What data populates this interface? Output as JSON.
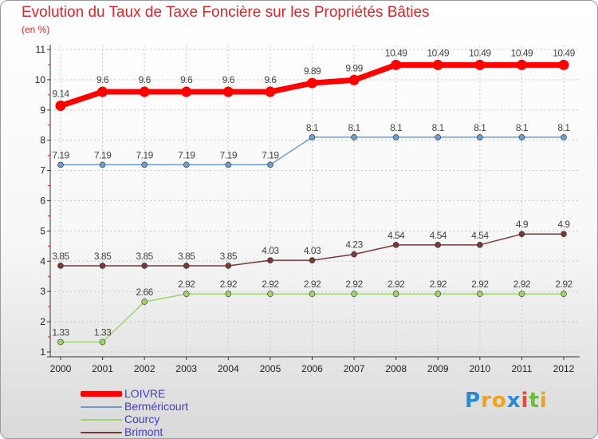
{
  "title": "Evolution du Taux de Taxe Foncière sur les Propriétés Bâties",
  "subtitle": "(en %)",
  "logo_letters": [
    "P",
    "r",
    "o",
    "x",
    "i",
    "t",
    "i"
  ],
  "logo_colors": [
    "#2a8ad4",
    "#f0a21a",
    "#f0a21a",
    "#2a8ad4",
    "#e64b3c",
    "#6cbd3c",
    "#f0a21a"
  ],
  "chart_data": {
    "type": "line",
    "title": "Evolution du Taux de Taxe Foncière sur les Propriétés Bâties",
    "ylabel": "(en %)",
    "xlabel": "",
    "x": [
      "2000",
      "2001",
      "2002",
      "2003",
      "2004",
      "2005",
      "2006",
      "2007",
      "2008",
      "2009",
      "2010",
      "2011",
      "2012"
    ],
    "ylim": [
      1,
      11
    ],
    "yticks": [
      "1",
      "2",
      "3",
      "4",
      "5",
      "6",
      "7",
      "8",
      "9",
      "10",
      "11"
    ],
    "legend_position": "bottom-left",
    "series": [
      {
        "name": "LOIVRE",
        "color": "#ff0000",
        "values": [
          9.14,
          9.6,
          9.6,
          9.6,
          9.6,
          9.6,
          9.89,
          9.99,
          10.49,
          10.49,
          10.49,
          10.49,
          10.49
        ],
        "labels": [
          "9.14",
          "9.6",
          "9.6",
          "9.6",
          "9.6",
          "9.6",
          "9.89",
          "9.99",
          "10.49",
          "10.49",
          "10.49",
          "10.49",
          "10.49"
        ]
      },
      {
        "name": "Berméricourt",
        "color": "#6b9ed0",
        "values": [
          7.19,
          7.19,
          7.19,
          7.19,
          7.19,
          7.19,
          8.1,
          8.1,
          8.1,
          8.1,
          8.1,
          8.1,
          8.1
        ],
        "labels": [
          "7.19",
          "7.19",
          "7.19",
          "7.19",
          "7.19",
          "7.19",
          "8.1",
          "8.1",
          "8.1",
          "8.1",
          "8.1",
          "8.1",
          "8.1"
        ]
      },
      {
        "name": "Courcy",
        "color": "#9fd46c",
        "values": [
          1.33,
          1.33,
          2.66,
          2.92,
          2.92,
          2.92,
          2.92,
          2.92,
          2.92,
          2.92,
          2.92,
          2.92,
          2.92
        ],
        "labels": [
          "1.33",
          "1.33",
          "2.66",
          "2.92",
          "2.92",
          "2.92",
          "2.92",
          "2.92",
          "2.92",
          "2.92",
          "2.92",
          "2.92",
          "2.92"
        ]
      },
      {
        "name": "Brimont",
        "color": "#7a3838",
        "values": [
          3.85,
          3.85,
          3.85,
          3.85,
          3.85,
          4.03,
          4.03,
          4.23,
          4.54,
          4.54,
          4.54,
          4.9,
          4.9
        ],
        "labels": [
          "3.85",
          "3.85",
          "3.85",
          "3.85",
          "3.85",
          "4.03",
          "4.03",
          "4.23",
          "4.54",
          "4.54",
          "4.54",
          "4.9",
          "4.9"
        ]
      }
    ]
  }
}
